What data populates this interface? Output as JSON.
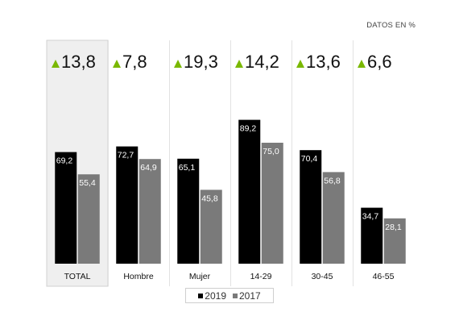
{
  "unit_label": "DATOS EN %",
  "colors": {
    "2019": "#000000",
    "2017": "#7a7a7a",
    "up_arrow": "#7ab800",
    "highlight_bg": "#efefef"
  },
  "chart_data": {
    "type": "bar",
    "categories": [
      "TOTAL",
      "Hombre",
      "Mujer",
      "14-29",
      "30-45",
      "46-55"
    ],
    "series": [
      {
        "name": "2019",
        "values": [
          69.2,
          72.7,
          65.1,
          89.2,
          70.4,
          34.7
        ],
        "labels": [
          "69,2",
          "72,7",
          "65,1",
          "89,2",
          "70,4",
          "34,7"
        ]
      },
      {
        "name": "2017",
        "values": [
          55.4,
          64.9,
          45.8,
          75.0,
          56.8,
          28.1
        ],
        "labels": [
          "55,4",
          "64,9",
          "45,8",
          "75,0",
          "56,8",
          "28,1"
        ]
      }
    ],
    "changes": [
      "13,8",
      "7,8",
      "19,3",
      "14,2",
      "13,6",
      "6,6"
    ],
    "highlighted_category": "TOTAL",
    "ylim": [
      0,
      100
    ],
    "legend_position": "bottom-center"
  }
}
